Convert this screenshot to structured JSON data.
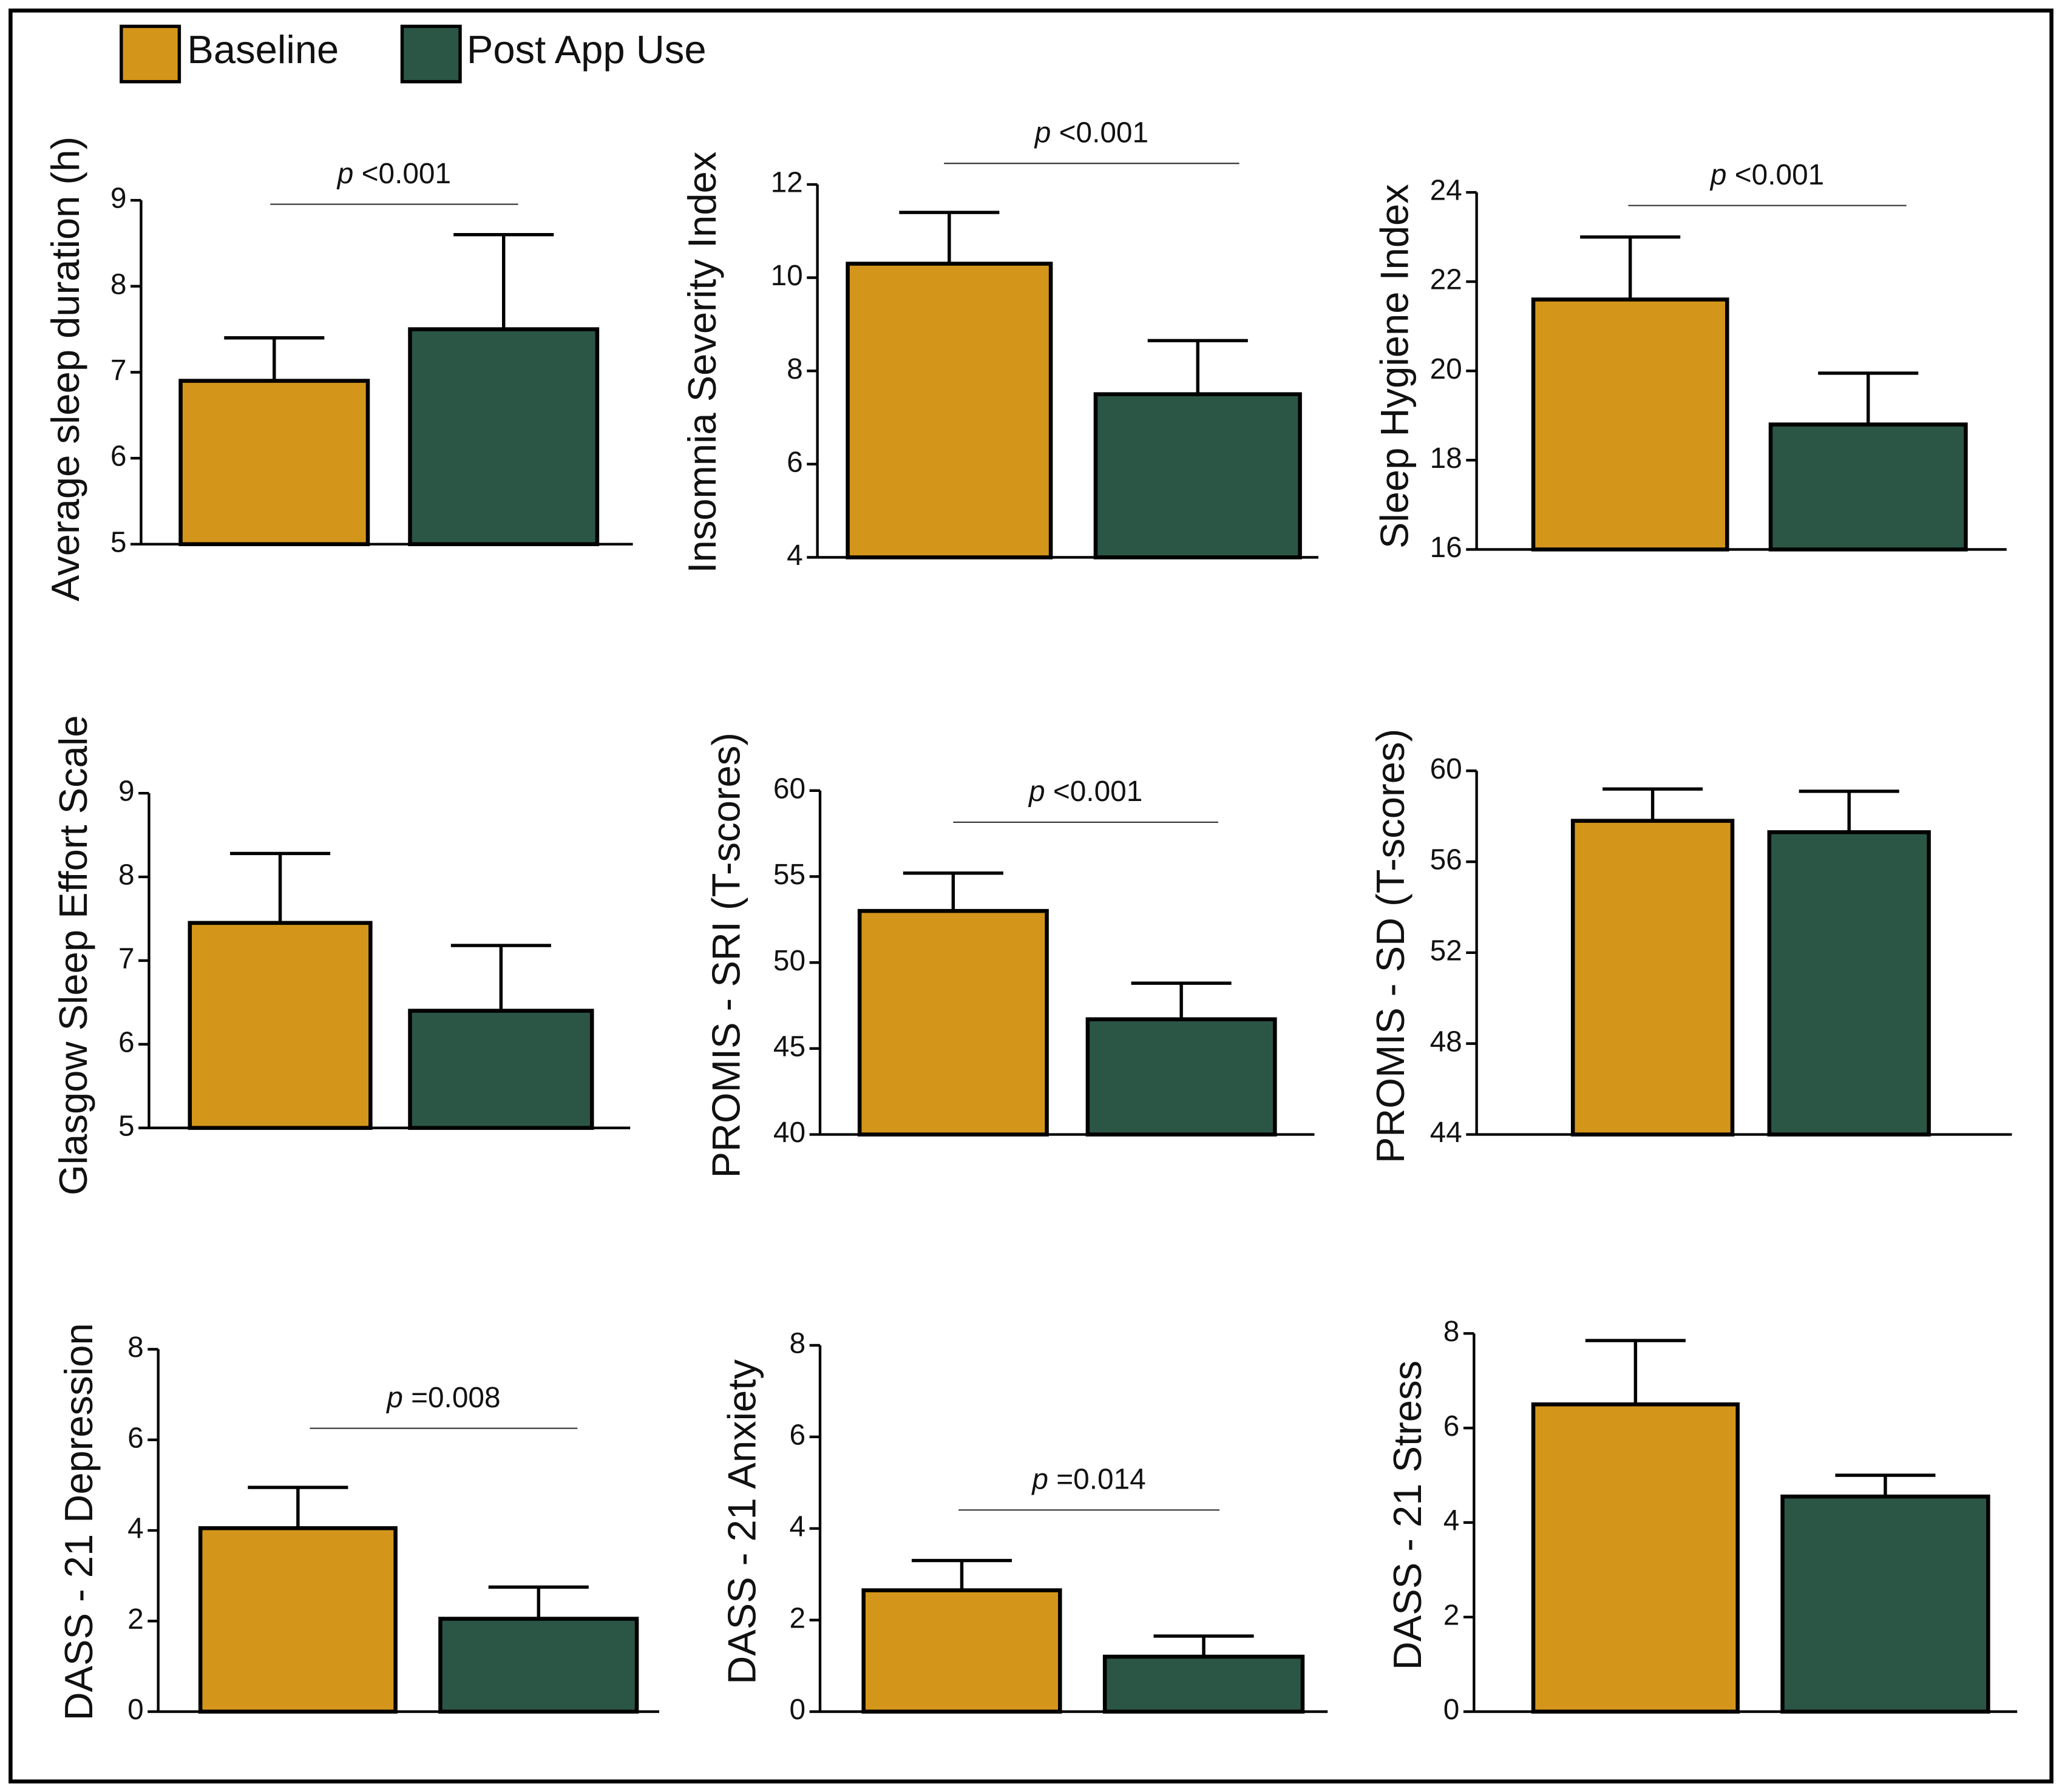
{
  "legend": [
    {
      "name": "Baseline",
      "color": "#d4961a"
    },
    {
      "name": "Post App Use",
      "color": "#2b5646"
    }
  ],
  "chart_data": [
    {
      "type": "bar",
      "ylabel": "Average sleep duration (h)",
      "values": [
        6.9,
        7.5
      ],
      "errors": [
        0.5,
        1.1
      ],
      "ylim": [
        5,
        9
      ],
      "yticks": [
        5,
        6,
        7,
        8,
        9
      ],
      "annotation": {
        "symbol": "p",
        "text": "<0.001"
      }
    },
    {
      "type": "bar",
      "ylabel": "Insomnia Severity Index",
      "values": [
        10.3,
        7.5
      ],
      "errors": [
        1.1,
        1.15
      ],
      "ylim": [
        4,
        12
      ],
      "yticks": [
        4,
        6,
        8,
        10,
        12
      ],
      "annotation": {
        "symbol": "p",
        "text": "<0.001"
      }
    },
    {
      "type": "bar",
      "ylabel": "Sleep Hygiene Index",
      "values": [
        21.6,
        18.8
      ],
      "errors": [
        1.4,
        1.15
      ],
      "ylim": [
        16,
        24
      ],
      "yticks": [
        16,
        18,
        20,
        22,
        24
      ],
      "annotation": {
        "symbol": "p",
        "text": "<0.001"
      }
    },
    {
      "type": "bar",
      "ylabel": "Glasgow Sleep Effort Scale",
      "values": [
        7.45,
        6.4
      ],
      "errors": [
        0.83,
        0.78
      ],
      "ylim": [
        5,
        9
      ],
      "yticks": [
        5,
        6,
        7,
        8,
        9
      ]
    },
    {
      "type": "bar",
      "ylabel": "PROMIS - SRI (T-scores)",
      "values": [
        53,
        46.7
      ],
      "errors": [
        2.2,
        2.1
      ],
      "ylim": [
        40,
        60
      ],
      "yticks": [
        40,
        45,
        50,
        55,
        60
      ],
      "annotation": {
        "symbol": "p",
        "text": "<0.001"
      }
    },
    {
      "type": "bar",
      "ylabel": "PROMIS - SD (T-scores)",
      "values": [
        57.8,
        57.3
      ],
      "errors": [
        1.4,
        1.8
      ],
      "ylim": [
        44,
        60
      ],
      "yticks": [
        44,
        48,
        52,
        56,
        60
      ]
    },
    {
      "type": "bar",
      "ylabel": "DASS - 21 Depression",
      "values": [
        4.05,
        2.05
      ],
      "errors": [
        0.9,
        0.7
      ],
      "ylim": [
        0,
        8
      ],
      "yticks": [
        0,
        2,
        4,
        6,
        8
      ],
      "annotation": {
        "symbol": "p",
        "text": "=0.008"
      }
    },
    {
      "type": "bar",
      "ylabel": "DASS - 21 Anxiety",
      "values": [
        2.65,
        1.2
      ],
      "errors": [
        0.65,
        0.45
      ],
      "ylim": [
        0,
        8
      ],
      "yticks": [
        0,
        2,
        4,
        6,
        8
      ],
      "annotation": {
        "symbol": "p",
        "text": "=0.014"
      }
    },
    {
      "type": "bar",
      "ylabel": "DASS - 21 Stress",
      "values": [
        6.5,
        4.55
      ],
      "errors": [
        1.35,
        0.45
      ],
      "ylim": [
        0,
        8
      ],
      "yticks": [
        0,
        2,
        4,
        6,
        8
      ]
    }
  ]
}
